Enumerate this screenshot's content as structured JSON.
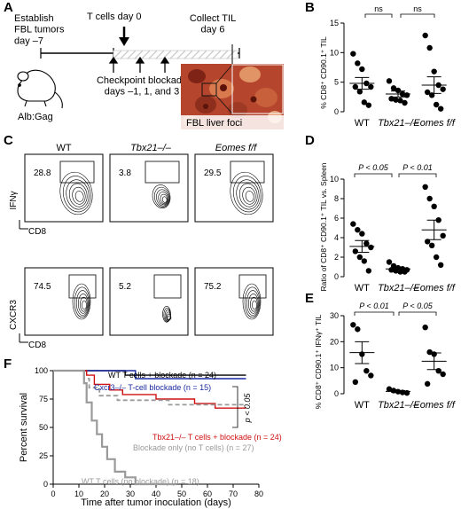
{
  "panels": {
    "A": {
      "letter": "A",
      "establish_label": "Establish\nFBL tumors\nday –7",
      "tcells_label": "T cells day 0",
      "collect_label": "Collect TIL\nday 6",
      "checkpoint_label": "Checkpoint blockade\ndays –1, 1, and 3",
      "mouse_label": "Alb:Gag",
      "liver_label": "FBL liver foci"
    },
    "B": {
      "letter": "B",
      "ylabel": "% CD8⁺ CD90.1⁺ TIL",
      "ns1": "ns",
      "ns2": "ns"
    },
    "C": {
      "letter": "C",
      "col_titles": [
        "WT",
        "Tbx21–/–",
        "Eomes f/f"
      ],
      "row1_ylabel": "IFNγ",
      "row2_ylabel": "CXCR3",
      "xlabel": "CD8",
      "row1_values": [
        "28.8",
        "3.8",
        "29.5"
      ],
      "row2_values": [
        "74.5",
        "5.2",
        "75.2"
      ]
    },
    "D": {
      "letter": "D",
      "ylabel": "Ratio of CD8⁺ CD90.1⁺ TIL vs. Spleen",
      "p1": "P < 0.05",
      "p2": "P < 0.01"
    },
    "E": {
      "letter": "E",
      "ylabel": "% CD8⁺ CD90.1⁺ IFNγ⁺ TIL",
      "p1": "P < 0.01",
      "p2": "P < 0.05"
    },
    "F": {
      "letter": "F",
      "legend": [
        {
          "text": "WT T cells + blockade (n = 24)",
          "color": "#000000"
        },
        {
          "text": "Cxcr3–/– T-cell blockade (n = 15)",
          "color": "#1a2aa0"
        },
        {
          "text": "Tbx21–/– T  cells + blockade (n = 24)",
          "color": "#d01010"
        },
        {
          "text": "Blockade only (no T cells) (n = 27)",
          "color": "#9a9a9a"
        },
        {
          "text": "WT T cells (no blockade) (n = 18)",
          "color": "#9a9a9a"
        }
      ],
      "pval": "p < 0.05"
    }
  },
  "chart_data": [
    {
      "panel": "B",
      "type": "scatter",
      "ylabel": "% CD8⁺ CD90.1⁺ TIL",
      "categories": [
        "WT",
        "Tbx21–/–",
        "Eomes f/f"
      ],
      "ylim": [
        0,
        15
      ],
      "yticks": [
        0,
        5,
        10,
        15
      ],
      "points": [
        [
          9.8,
          8.2,
          7.2,
          4.8,
          4.2,
          4.2,
          3.4,
          1.6,
          1.1
        ],
        [
          5.2,
          4.0,
          3.6,
          3.0,
          2.8,
          2.2,
          2.0,
          1.9,
          1.5
        ],
        [
          12.9,
          10.8,
          6.8,
          4.5,
          3.8,
          3.3,
          2.8,
          1.2,
          0.5
        ]
      ],
      "means": [
        4.8,
        3.0,
        4.5
      ],
      "sem": [
        1.0,
        0.5,
        1.4
      ]
    },
    {
      "panel": "D",
      "type": "scatter",
      "ylabel": "Ratio of CD8⁺ CD90.1⁺ TIL vs. Spleen",
      "categories": [
        "WT",
        "Tbx21–/–",
        "Eomes f/f"
      ],
      "ylim": [
        0,
        10
      ],
      "yticks": [
        0,
        2,
        4,
        6,
        8,
        10
      ],
      "points": [
        [
          5.4,
          4.8,
          4.4,
          3.4,
          3.0,
          2.6,
          2.0,
          1.6,
          0.6
        ],
        [
          1.5,
          1.1,
          0.9,
          0.8,
          0.7,
          0.7,
          0.6,
          0.5,
          0.5
        ],
        [
          9.2,
          8.0,
          7.2,
          5.8,
          4.2,
          3.6,
          3.2,
          2.0,
          1.2
        ]
      ],
      "means": [
        3.1,
        0.8,
        4.8
      ],
      "sem": [
        0.6,
        0.1,
        1.0
      ]
    },
    {
      "panel": "E",
      "type": "scatter",
      "ylabel": "% CD8⁺ CD90.1⁺ IFNγ⁺ TIL",
      "categories": [
        "WT",
        "Tbx21–/–",
        "Eomes f/f"
      ],
      "ylim": [
        0,
        30
      ],
      "yticks": [
        0,
        10,
        20,
        30
      ],
      "points": [
        [
          26.5,
          24.8,
          15.2,
          8.8,
          7.0,
          4.5
        ],
        [
          1.8,
          1.2,
          0.8,
          0.5,
          0.3
        ],
        [
          25.5,
          16.0,
          15.2,
          8.8,
          7.5,
          3.8
        ]
      ],
      "means": [
        15.8,
        0.9,
        12.5
      ],
      "sem": [
        4.2,
        0.3,
        3.2
      ]
    },
    {
      "panel": "F",
      "type": "line",
      "xlabel": "Time after tumor inoculation (days)",
      "ylabel": "Percent survival",
      "xlim": [
        0,
        80
      ],
      "ylim": [
        0,
        100
      ],
      "xticks": [
        0,
        10,
        20,
        30,
        40,
        50,
        60,
        70,
        80
      ],
      "yticks": [
        0,
        25,
        50,
        75,
        100
      ],
      "series": [
        {
          "name": "WT T cells + blockade (n = 24)",
          "color": "#000000",
          "steps": [
            [
              0,
              100
            ],
            [
              28,
              100
            ],
            [
              28,
              96
            ],
            [
              75,
              96
            ]
          ]
        },
        {
          "name": "Cxcr3–/– T-cell blockade (n = 15)",
          "color": "#1a2aa0",
          "steps": [
            [
              0,
              100
            ],
            [
              32,
              100
            ],
            [
              32,
              93
            ],
            [
              75,
              93
            ]
          ]
        },
        {
          "name": "Tbx21–/– T  cells + blockade (n = 24)",
          "color": "#d01010",
          "steps": [
            [
              0,
              100
            ],
            [
              13,
              100
            ],
            [
              13,
              96
            ],
            [
              16,
              96
            ],
            [
              16,
              88
            ],
            [
              22,
              88
            ],
            [
              22,
              83
            ],
            [
              27,
              83
            ],
            [
              27,
              79
            ],
            [
              40,
              79
            ],
            [
              40,
              75
            ],
            [
              55,
              75
            ],
            [
              55,
              71
            ],
            [
              63,
              71
            ],
            [
              63,
              67
            ],
            [
              75,
              67
            ]
          ]
        },
        {
          "name": "Blockade only (no T cells) (n = 27)",
          "color": "#9a9a9a",
          "steps": [
            [
              0,
              100
            ],
            [
              12,
              100
            ],
            [
              12,
              93
            ],
            [
              14,
              93
            ],
            [
              14,
              85
            ],
            [
              18,
              85
            ],
            [
              18,
              78
            ],
            [
              25,
              78
            ],
            [
              25,
              74
            ],
            [
              45,
              74
            ],
            [
              45,
              70
            ],
            [
              75,
              70
            ]
          ]
        },
        {
          "name": "WT T cells (no blockade) (n = 18)",
          "color": "#9a9a9a",
          "steps": [
            [
              0,
              100
            ],
            [
              12,
              100
            ],
            [
              12,
              89
            ],
            [
              13,
              89
            ],
            [
              13,
              72
            ],
            [
              15,
              72
            ],
            [
              15,
              56
            ],
            [
              17,
              56
            ],
            [
              17,
              44
            ],
            [
              19,
              44
            ],
            [
              19,
              33
            ],
            [
              21,
              33
            ],
            [
              21,
              22
            ],
            [
              24,
              22
            ],
            [
              24,
              11
            ],
            [
              28,
              11
            ],
            [
              28,
              6
            ],
            [
              32,
              6
            ],
            [
              32,
              0
            ],
            [
              48,
              0
            ]
          ]
        }
      ]
    }
  ]
}
